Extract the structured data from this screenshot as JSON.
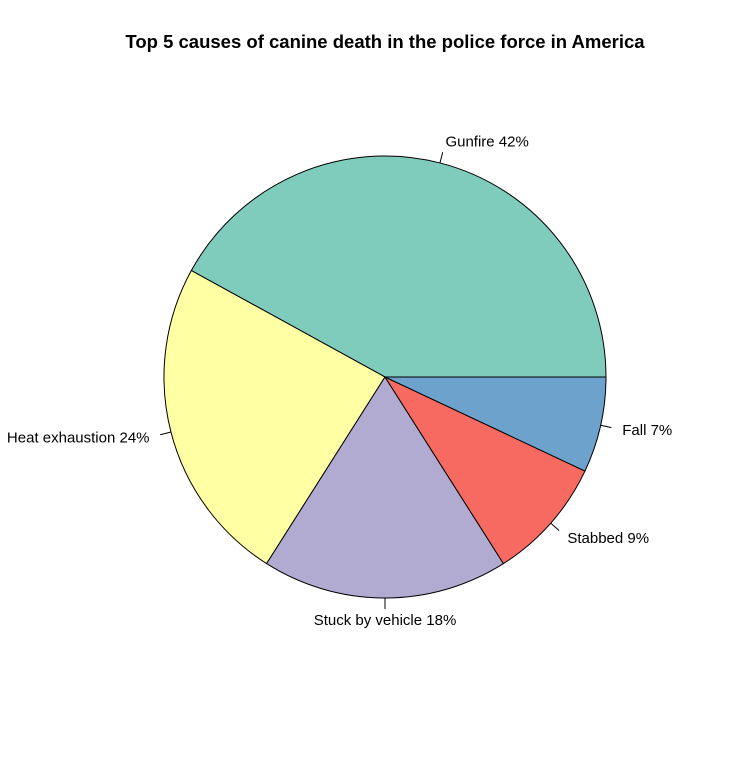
{
  "chart_data": {
    "type": "pie",
    "title": "Top 5 causes of canine death in the police force in America",
    "start_angle_deg": 0,
    "direction": "counterclockwise",
    "slices": [
      {
        "label": "Gunfire 42%",
        "value": 42,
        "color": "#7FCBBC"
      },
      {
        "label": "Heat exhaustion 24%",
        "value": 24,
        "color": "#FFFFA3"
      },
      {
        "label": "Stuck by vehicle 18%",
        "value": 18,
        "color": "#B2ABD1"
      },
      {
        "label": "Stabbed 9%",
        "value": 9,
        "color": "#F66A62"
      },
      {
        "label": "Fall 7%",
        "value": 7,
        "color": "#6CA2CB"
      }
    ]
  }
}
